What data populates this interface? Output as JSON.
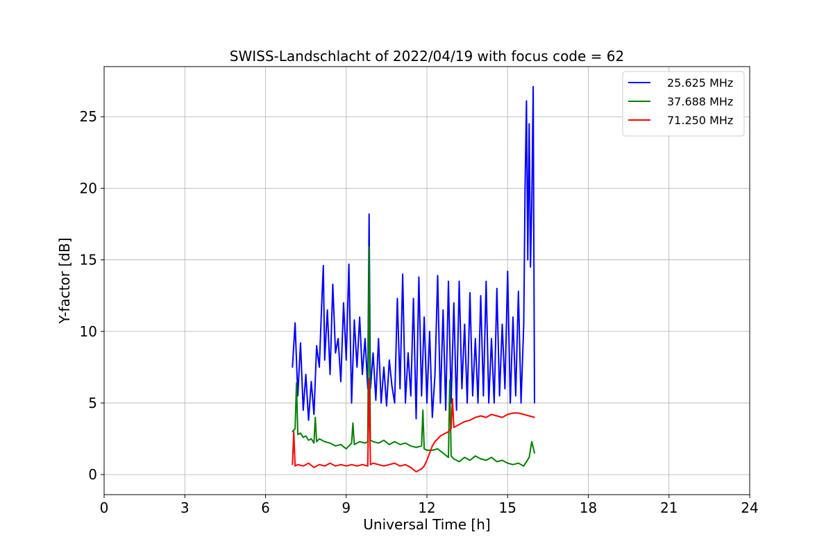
{
  "chart_data": {
    "type": "line",
    "title": "SWISS-Landschlacht of 2022/04/19 with focus code = 62",
    "xlabel": "Universal Time [h]",
    "ylabel": "Y-factor [dB]",
    "xlim": [
      0,
      24
    ],
    "ylim": [
      -1.4,
      28.5
    ],
    "xticks": [
      0,
      3,
      6,
      9,
      12,
      15,
      18,
      21,
      24
    ],
    "xtick_labels": [
      "0",
      "3",
      "6",
      "9",
      "12",
      "15",
      "18",
      "21",
      "24"
    ],
    "yticks": [
      0,
      5,
      10,
      15,
      20,
      25
    ],
    "ytick_labels": [
      "0",
      "5",
      "10",
      "15",
      "20",
      "25"
    ],
    "grid": true,
    "legend_position": "top-right",
    "series": [
      {
        "name": "25.625 MHz",
        "color": "#0000ff",
        "x": [
          7.0,
          7.1,
          7.2,
          7.3,
          7.4,
          7.5,
          7.6,
          7.7,
          7.8,
          7.9,
          8.0,
          8.1,
          8.15,
          8.2,
          8.3,
          8.4,
          8.5,
          8.6,
          8.7,
          8.8,
          8.9,
          9.0,
          9.1,
          9.2,
          9.3,
          9.4,
          9.5,
          9.6,
          9.7,
          9.8,
          9.85,
          9.9,
          10.0,
          10.1,
          10.2,
          10.3,
          10.4,
          10.5,
          10.6,
          10.7,
          10.8,
          10.9,
          11.0,
          11.1,
          11.2,
          11.3,
          11.4,
          11.5,
          11.6,
          11.7,
          11.8,
          11.9,
          12.0,
          12.1,
          12.2,
          12.3,
          12.4,
          12.5,
          12.6,
          12.7,
          12.8,
          12.9,
          13.0,
          13.1,
          13.2,
          13.3,
          13.4,
          13.5,
          13.6,
          13.7,
          13.8,
          13.9,
          14.0,
          14.1,
          14.2,
          14.3,
          14.4,
          14.5,
          14.6,
          14.7,
          14.8,
          14.9,
          15.0,
          15.1,
          15.2,
          15.3,
          15.4,
          15.5,
          15.6,
          15.65,
          15.7,
          15.75,
          15.8,
          15.85,
          15.9,
          15.95,
          16.0
        ],
        "y": [
          7.5,
          10.6,
          5.5,
          9.2,
          4.5,
          7.0,
          3.8,
          6.5,
          4.2,
          9.0,
          7.5,
          12.5,
          14.6,
          8.0,
          11.5,
          7.0,
          13.3,
          8.5,
          9.5,
          6.5,
          12.0,
          8.0,
          14.7,
          5.0,
          10.8,
          7.5,
          11.0,
          7.0,
          9.5,
          6.0,
          18.2,
          6.0,
          8.5,
          5.2,
          9.5,
          5.0,
          7.5,
          4.8,
          8.0,
          6.2,
          5.0,
          12.3,
          6.0,
          14.0,
          5.0,
          8.5,
          5.5,
          12.3,
          3.9,
          13.8,
          5.5,
          11.0,
          5.0,
          10.0,
          4.0,
          7.0,
          13.9,
          5.0,
          11.5,
          4.5,
          13.5,
          5.0,
          12.0,
          4.5,
          13.5,
          6.0,
          10.5,
          5.0,
          12.7,
          5.5,
          9.5,
          5.0,
          12.5,
          5.5,
          13.5,
          5.0,
          9.5,
          5.0,
          13.0,
          5.5,
          10.5,
          6.0,
          14.2,
          5.0,
          11.0,
          5.5,
          12.8,
          5.0,
          10.5,
          20.0,
          26.1,
          15.0,
          24.5,
          14.5,
          19.0,
          27.1,
          5.0
        ]
      },
      {
        "name": "37.688 MHz",
        "color": "#008000",
        "x": [
          7.0,
          7.1,
          7.15,
          7.2,
          7.3,
          7.4,
          7.5,
          7.6,
          7.7,
          7.8,
          7.85,
          7.9,
          8.0,
          8.2,
          8.4,
          8.6,
          8.8,
          9.0,
          9.2,
          9.25,
          9.3,
          9.5,
          9.7,
          9.8,
          9.85,
          9.9,
          10.0,
          10.2,
          10.4,
          10.6,
          10.8,
          11.0,
          11.2,
          11.4,
          11.6,
          11.8,
          11.85,
          11.9,
          12.0,
          12.2,
          12.4,
          12.6,
          12.8,
          12.85,
          12.9,
          13.0,
          13.2,
          13.4,
          13.6,
          13.8,
          14.0,
          14.2,
          14.4,
          14.6,
          14.8,
          15.0,
          15.2,
          15.4,
          15.6,
          15.8,
          15.9,
          16.0
        ],
        "y": [
          3.0,
          3.2,
          6.4,
          2.8,
          2.9,
          2.6,
          2.7,
          2.4,
          2.5,
          2.2,
          4.0,
          2.3,
          2.5,
          2.3,
          2.2,
          2.0,
          2.1,
          1.8,
          2.2,
          3.6,
          2.1,
          2.3,
          2.2,
          2.3,
          15.9,
          2.4,
          2.3,
          2.2,
          2.4,
          2.1,
          2.3,
          2.1,
          2.2,
          2.0,
          1.9,
          2.0,
          4.5,
          1.8,
          1.7,
          1.7,
          1.8,
          1.5,
          1.2,
          6.6,
          1.3,
          1.1,
          0.9,
          1.2,
          1.0,
          1.3,
          1.1,
          1.0,
          1.2,
          0.9,
          1.0,
          0.8,
          0.7,
          0.8,
          0.6,
          1.2,
          2.3,
          1.5
        ]
      },
      {
        "name": "71.250 MHz",
        "color": "#ff0000",
        "x": [
          7.0,
          7.05,
          7.1,
          7.2,
          7.4,
          7.6,
          7.8,
          8.0,
          8.2,
          8.4,
          8.6,
          8.8,
          9.0,
          9.2,
          9.4,
          9.6,
          9.8,
          9.85,
          9.9,
          10.0,
          10.2,
          10.4,
          10.6,
          10.8,
          11.0,
          11.2,
          11.4,
          11.6,
          11.8,
          11.9,
          12.0,
          12.1,
          12.2,
          12.3,
          12.4,
          12.5,
          12.6,
          12.8,
          12.9,
          12.95,
          13.0,
          13.2,
          13.4,
          13.6,
          13.8,
          14.0,
          14.2,
          14.4,
          14.6,
          14.8,
          15.0,
          15.2,
          15.4,
          15.6,
          15.8,
          16.0
        ],
        "y": [
          0.7,
          3.0,
          0.6,
          0.7,
          0.6,
          0.8,
          0.5,
          0.7,
          0.6,
          0.8,
          0.6,
          0.7,
          0.6,
          0.7,
          0.6,
          0.7,
          0.6,
          6.7,
          0.7,
          0.8,
          0.7,
          0.6,
          0.7,
          0.8,
          0.6,
          0.7,
          0.5,
          0.2,
          0.4,
          0.6,
          1.0,
          1.5,
          2.0,
          2.3,
          2.5,
          2.7,
          2.8,
          3.0,
          3.2,
          5.3,
          3.3,
          3.5,
          3.7,
          3.8,
          4.0,
          4.1,
          4.0,
          4.2,
          4.1,
          4.0,
          4.2,
          4.3,
          4.3,
          4.2,
          4.1,
          4.0
        ]
      }
    ]
  }
}
